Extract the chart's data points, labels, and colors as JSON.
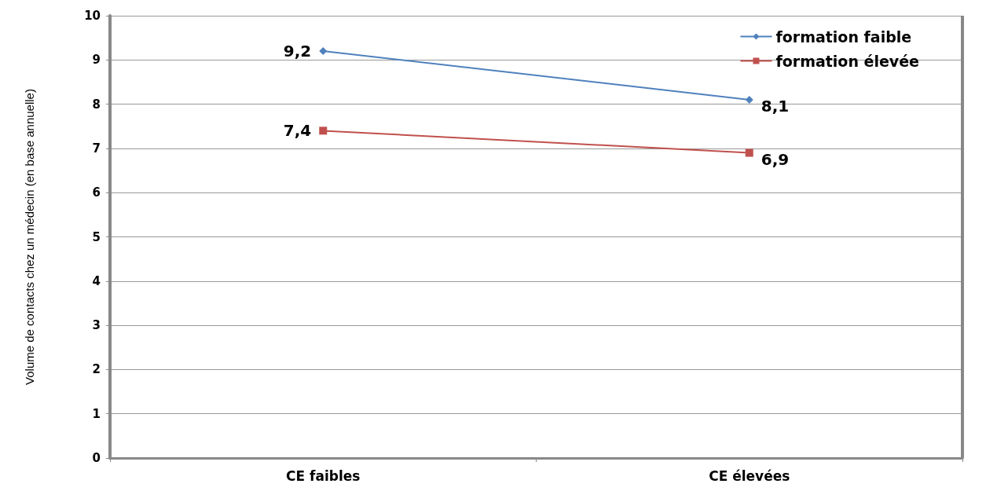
{
  "chart_data": {
    "type": "line",
    "ylabel": "Volume de contacts chez un médecin (en base annuelle)",
    "categories": [
      "CE faibles",
      "CE élevées"
    ],
    "series": [
      {
        "name": "formation faible",
        "color": "#4f81bd",
        "marker": "diamond",
        "values": [
          9.2,
          8.1
        ],
        "value_labels": [
          "9,2",
          "8,1"
        ]
      },
      {
        "name": "formation élevée",
        "color": "#c0504d",
        "marker": "square",
        "values": [
          7.4,
          6.9
        ],
        "value_labels": [
          "7,4",
          "6,9"
        ]
      }
    ],
    "ylim": [
      0,
      10
    ],
    "yticks": [
      0,
      1,
      2,
      3,
      4,
      5,
      6,
      7,
      8,
      9,
      10
    ],
    "grid": true,
    "legend": "top right"
  }
}
